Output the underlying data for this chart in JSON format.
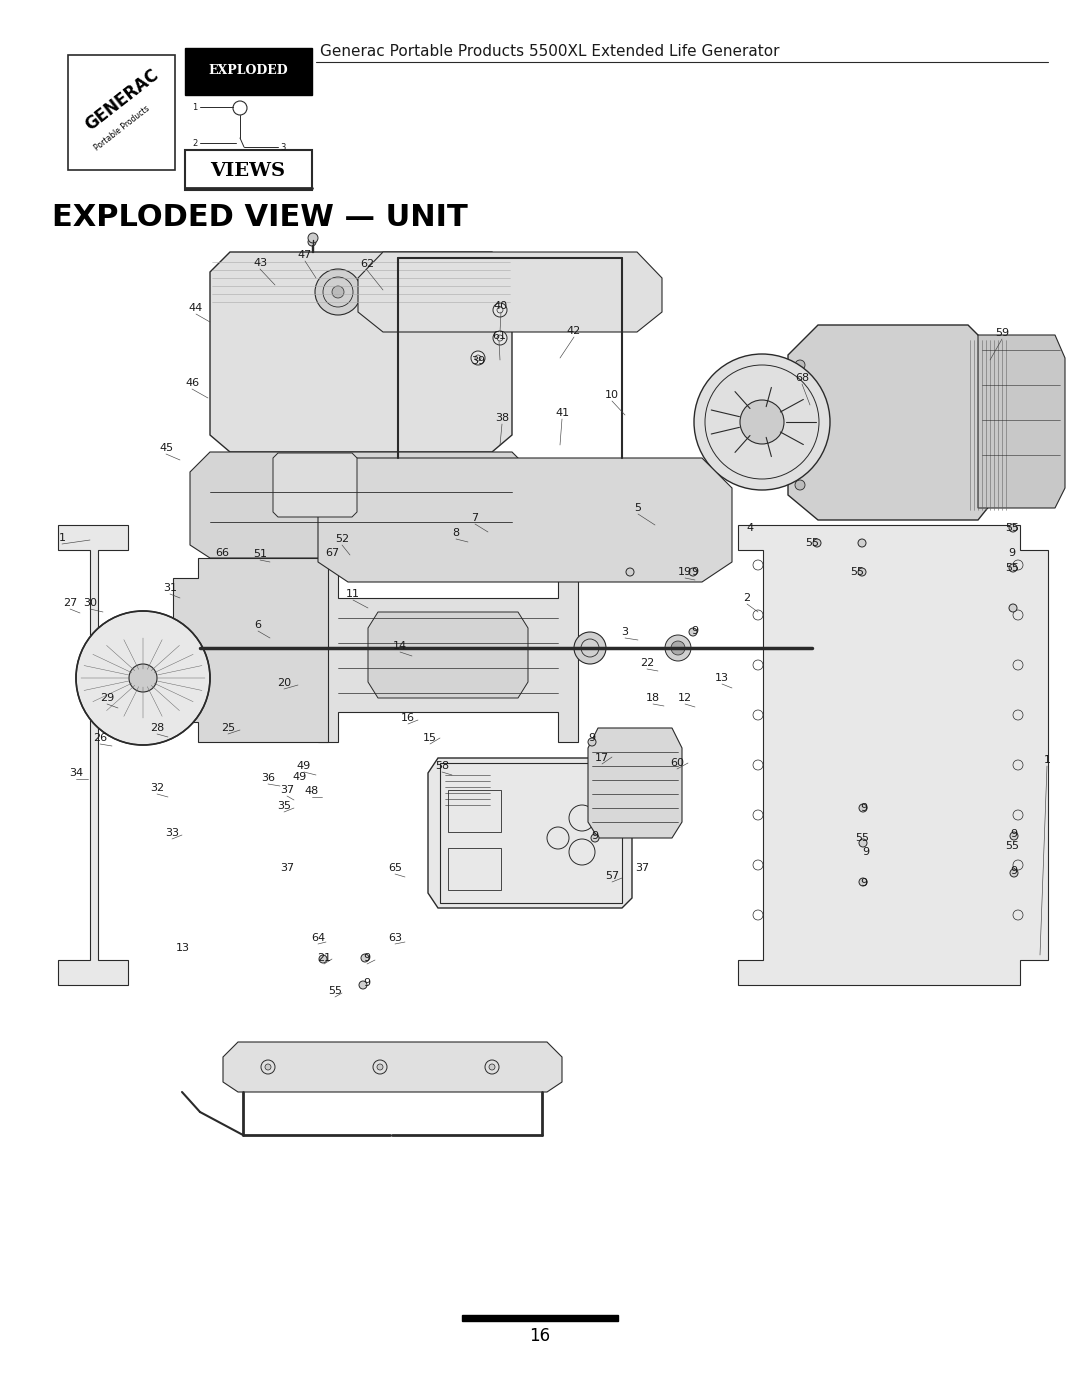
{
  "title": "EXPLODED VIEW — UNIT",
  "header_title": "Generac Portable Products 5500XL Extended Life Generator",
  "page_number": "16",
  "background_color": "#ffffff",
  "text_color": "#1a1a1a",
  "line_color": "#2a2a2a",
  "fig_width": 10.8,
  "fig_height": 13.97,
  "title_fontsize": 20,
  "header_fontsize": 11,
  "page_num_fontsize": 11,
  "part_label_fontsize": 8
}
